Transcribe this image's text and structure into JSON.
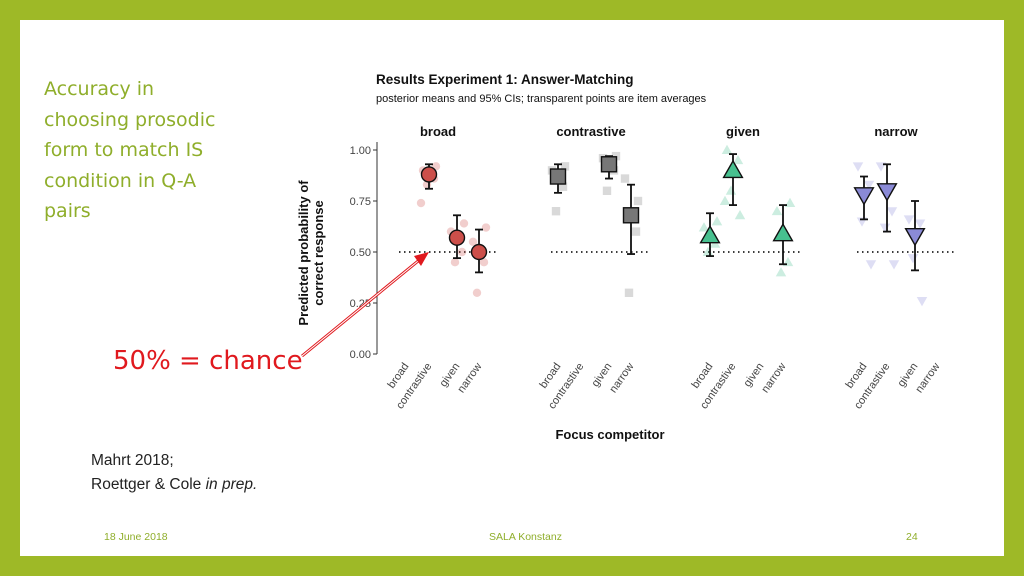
{
  "side_text": [
    "Accuracy in",
    "choosing prosodic",
    "form to match IS",
    "condition in Q-A",
    "pairs"
  ],
  "annotation": "50% = chance",
  "citation": {
    "line1": "Mahrt 2018;",
    "line2_text": "Roettger & Cole ",
    "line2_italic": "in prep."
  },
  "footer": {
    "date": "18 June  2018",
    "venue": "SALA Konstanz",
    "page": "24"
  },
  "colors": {
    "frame": "#9eb927",
    "side_text": "#8fae2b",
    "annotation": "#e0191e",
    "broad": "#cc4f4a",
    "contrastive": "#777777",
    "given": "#47c08f",
    "narrow": "#8a8ad6"
  },
  "chart_data": {
    "type": "scatter",
    "title": "Results Experiment 1: Answer-Matching",
    "subtitle": "posterior means and 95% CIs; transparent points are item averages",
    "xlabel": "Focus competitor",
    "ylabel": "Predicted probability of correct response",
    "ylim": [
      0,
      1
    ],
    "yticks": [
      "0.00",
      "0.25",
      "0.50",
      "0.75",
      "1.00"
    ],
    "chance_line": 0.5,
    "categories": [
      "broad",
      "contrastive",
      "given",
      "narrow"
    ],
    "panels": [
      {
        "name": "broad",
        "shape": "circle",
        "points": [
          {
            "competitor": "contrastive",
            "mean": 0.88,
            "lower": 0.81,
            "upper": 0.93,
            "items": [
              0.9,
              0.86,
              0.83,
              0.92,
              0.74
            ]
          },
          {
            "competitor": "given",
            "mean": 0.57,
            "lower": 0.47,
            "upper": 0.68,
            "items": [
              0.6,
              0.5,
              0.45,
              0.64
            ]
          },
          {
            "competitor": "narrow",
            "mean": 0.5,
            "lower": 0.4,
            "upper": 0.61,
            "items": [
              0.55,
              0.45,
              0.3,
              0.62
            ]
          }
        ]
      },
      {
        "name": "contrastive",
        "shape": "square",
        "points": [
          {
            "competitor": "broad",
            "mean": 0.87,
            "lower": 0.79,
            "upper": 0.93,
            "items": [
              0.9,
              0.82,
              0.7,
              0.92
            ]
          },
          {
            "competitor": "given",
            "mean": 0.93,
            "lower": 0.86,
            "upper": 0.97,
            "items": [
              0.96,
              0.9,
              0.8,
              0.97
            ]
          },
          {
            "competitor": "narrow",
            "mean": 0.68,
            "lower": 0.49,
            "upper": 0.83,
            "items": [
              0.86,
              0.6,
              0.3,
              0.75
            ]
          }
        ]
      },
      {
        "name": "given",
        "shape": "triangle-up",
        "points": [
          {
            "competitor": "broad",
            "mean": 0.58,
            "lower": 0.48,
            "upper": 0.69,
            "items": [
              0.62,
              0.54,
              0.5,
              0.65
            ]
          },
          {
            "competitor": "contrastive",
            "mean": 0.9,
            "lower": 0.73,
            "upper": 0.98,
            "items": [
              1.0,
              0.95,
              0.8,
              0.68,
              0.75
            ]
          },
          {
            "competitor": "narrow",
            "mean": 0.59,
            "lower": 0.44,
            "upper": 0.73,
            "items": [
              0.7,
              0.45,
              0.4,
              0.74
            ]
          }
        ]
      },
      {
        "name": "narrow",
        "shape": "triangle-down",
        "points": [
          {
            "competitor": "broad",
            "mean": 0.78,
            "lower": 0.66,
            "upper": 0.87,
            "items": [
              0.92,
              0.83,
              0.65,
              0.44
            ]
          },
          {
            "competitor": "contrastive",
            "mean": 0.8,
            "lower": 0.6,
            "upper": 0.93,
            "items": [
              0.92,
              0.7,
              0.62,
              0.44
            ]
          },
          {
            "competitor": "given",
            "mean": 0.58,
            "lower": 0.41,
            "upper": 0.75,
            "items": [
              0.66,
              0.64,
              0.47,
              0.26
            ]
          }
        ]
      }
    ]
  }
}
